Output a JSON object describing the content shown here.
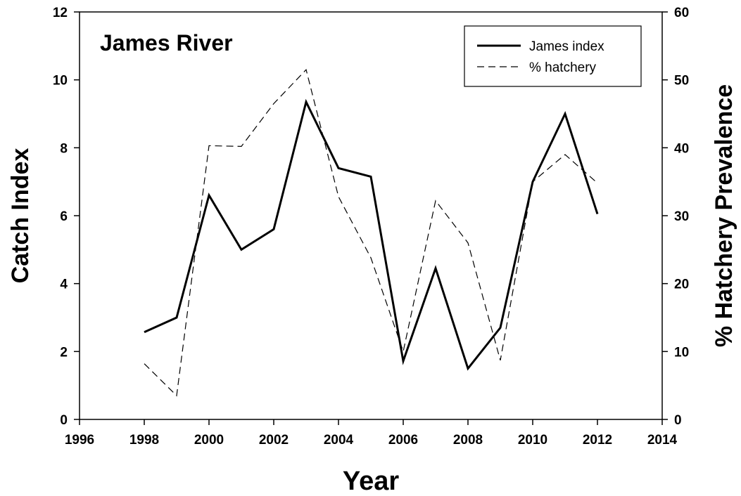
{
  "chart_data": {
    "type": "line",
    "title": "James River",
    "xlabel": "Year",
    "ylabel": "Catch Index",
    "y2label": "% Hatchery Prevalence",
    "xlim": [
      1996,
      2014
    ],
    "ylim": [
      0,
      12
    ],
    "y2lim": [
      0,
      60
    ],
    "xticks": [
      1996,
      1998,
      2000,
      2002,
      2004,
      2006,
      2008,
      2010,
      2012,
      2014
    ],
    "yticks": [
      0,
      2,
      4,
      6,
      8,
      10,
      12
    ],
    "y2ticks": [
      0,
      10,
      20,
      30,
      40,
      50,
      60
    ],
    "grid": false,
    "legend_position": "top-right",
    "series": [
      {
        "name": "James index",
        "axis": "left",
        "style": "solid",
        "color": "#000000",
        "x": [
          1998,
          1999,
          2000,
          2001,
          2002,
          2003,
          2004,
          2005,
          2006,
          2007,
          2008,
          2009,
          2010,
          2011,
          2012
        ],
        "values": [
          2.57,
          3.0,
          6.6,
          5.0,
          5.6,
          9.35,
          7.4,
          7.15,
          1.72,
          4.45,
          1.5,
          2.7,
          7.0,
          9.0,
          6.05
        ]
      },
      {
        "name": "% hatchery",
        "axis": "right",
        "style": "dashed",
        "color": "#000000",
        "x": [
          1998,
          1999,
          2000,
          2001,
          2002,
          2003,
          2004,
          2005,
          2006,
          2007,
          2008,
          2009,
          2010,
          2011,
          2012
        ],
        "values": [
          8.2,
          3.5,
          40.3,
          40.2,
          46.5,
          51.5,
          32.8,
          23.8,
          10.0,
          32.2,
          26.0,
          8.7,
          35.0,
          39.0,
          34.8
        ]
      }
    ]
  }
}
